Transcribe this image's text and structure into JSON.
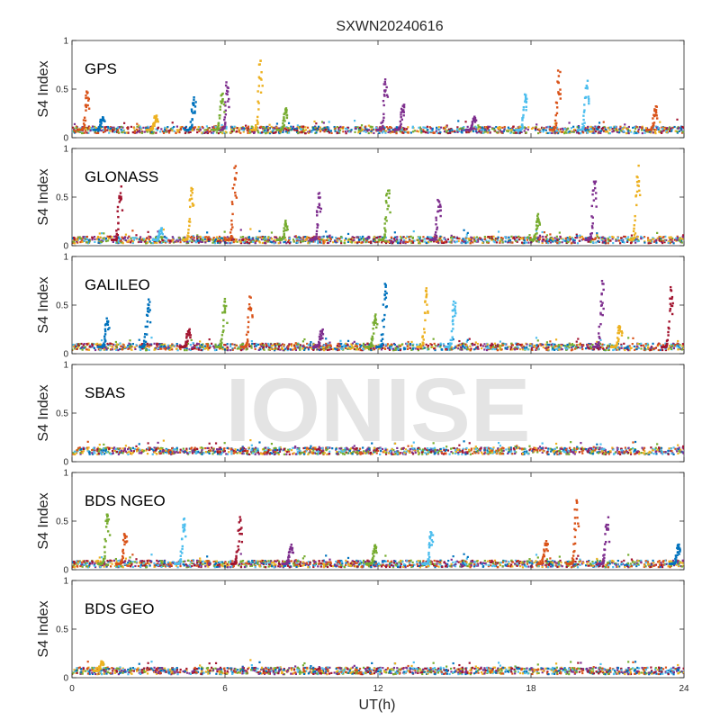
{
  "chart_data": {
    "type": "scatter",
    "title": "SXWN20240616",
    "xlabel": "UT(h)",
    "ylabel": "S4 Index",
    "xlim": [
      0,
      24
    ],
    "ylim": [
      0,
      1
    ],
    "xticks": [
      "0",
      "6",
      "12",
      "18",
      "24"
    ],
    "yticks": [
      "0",
      "0.5",
      "1"
    ],
    "grid": false,
    "watermark": "IONISE",
    "colors": [
      "#0072BD",
      "#D95319",
      "#EDB120",
      "#7E2F8E",
      "#77AC30",
      "#4DBEEE",
      "#A2142F"
    ],
    "panels": [
      {
        "label": "GPS",
        "baseline": 0.08,
        "spikes": [
          {
            "t": 0.6,
            "peak": 0.47,
            "color": "#D95319"
          },
          {
            "t": 1.2,
            "peak": 0.22,
            "color": "#0072BD"
          },
          {
            "t": 3.3,
            "peak": 0.23,
            "color": "#EDB120"
          },
          {
            "t": 4.8,
            "peak": 0.42,
            "color": "#0072BD"
          },
          {
            "t": 6.1,
            "peak": 0.57,
            "color": "#7E2F8E"
          },
          {
            "t": 5.9,
            "peak": 0.44,
            "color": "#77AC30"
          },
          {
            "t": 7.4,
            "peak": 0.77,
            "color": "#EDB120"
          },
          {
            "t": 8.4,
            "peak": 0.32,
            "color": "#77AC30"
          },
          {
            "t": 12.3,
            "peak": 0.6,
            "color": "#7E2F8E"
          },
          {
            "t": 13.0,
            "peak": 0.35,
            "color": "#7E2F8E"
          },
          {
            "t": 15.8,
            "peak": 0.22,
            "color": "#7E2F8E"
          },
          {
            "t": 17.8,
            "peak": 0.47,
            "color": "#4DBEEE"
          },
          {
            "t": 19.1,
            "peak": 0.68,
            "color": "#D95319"
          },
          {
            "t": 20.2,
            "peak": 0.58,
            "color": "#4DBEEE"
          },
          {
            "t": 22.9,
            "peak": 0.32,
            "color": "#D95319"
          }
        ]
      },
      {
        "label": "GLONASS",
        "baseline": 0.06,
        "spikes": [
          {
            "t": 1.9,
            "peak": 0.62,
            "color": "#A2142F"
          },
          {
            "t": 3.5,
            "peak": 0.18,
            "color": "#4DBEEE"
          },
          {
            "t": 4.7,
            "peak": 0.63,
            "color": "#EDB120"
          },
          {
            "t": 6.4,
            "peak": 0.84,
            "color": "#D95319"
          },
          {
            "t": 8.4,
            "peak": 0.25,
            "color": "#77AC30"
          },
          {
            "t": 9.7,
            "peak": 0.55,
            "color": "#7E2F8E"
          },
          {
            "t": 12.4,
            "peak": 0.57,
            "color": "#77AC30"
          },
          {
            "t": 14.4,
            "peak": 0.51,
            "color": "#7E2F8E"
          },
          {
            "t": 18.3,
            "peak": 0.33,
            "color": "#77AC30"
          },
          {
            "t": 20.5,
            "peak": 0.7,
            "color": "#7E2F8E"
          },
          {
            "t": 22.2,
            "peak": 0.8,
            "color": "#EDB120"
          }
        ]
      },
      {
        "label": "GALILEO",
        "baseline": 0.07,
        "spikes": [
          {
            "t": 1.4,
            "peak": 0.37,
            "color": "#0072BD"
          },
          {
            "t": 3.0,
            "peak": 0.6,
            "color": "#0072BD"
          },
          {
            "t": 4.6,
            "peak": 0.26,
            "color": "#A2142F"
          },
          {
            "t": 6.0,
            "peak": 0.58,
            "color": "#77AC30"
          },
          {
            "t": 7.0,
            "peak": 0.57,
            "color": "#D95319"
          },
          {
            "t": 9.8,
            "peak": 0.26,
            "color": "#7E2F8E"
          },
          {
            "t": 11.9,
            "peak": 0.42,
            "color": "#77AC30"
          },
          {
            "t": 12.3,
            "peak": 0.73,
            "color": "#0072BD"
          },
          {
            "t": 13.9,
            "peak": 0.66,
            "color": "#EDB120"
          },
          {
            "t": 15.0,
            "peak": 0.57,
            "color": "#4DBEEE"
          },
          {
            "t": 20.8,
            "peak": 0.72,
            "color": "#7E2F8E"
          },
          {
            "t": 21.5,
            "peak": 0.3,
            "color": "#EDB120"
          },
          {
            "t": 23.5,
            "peak": 0.7,
            "color": "#A2142F"
          }
        ]
      },
      {
        "label": "SBAS",
        "baseline": 0.11,
        "spikes": []
      },
      {
        "label": "BDS NGEO",
        "baseline": 0.06,
        "spikes": [
          {
            "t": 1.4,
            "peak": 0.62,
            "color": "#77AC30"
          },
          {
            "t": 2.1,
            "peak": 0.4,
            "color": "#D95319"
          },
          {
            "t": 4.4,
            "peak": 0.52,
            "color": "#4DBEEE"
          },
          {
            "t": 6.6,
            "peak": 0.53,
            "color": "#A2142F"
          },
          {
            "t": 8.6,
            "peak": 0.26,
            "color": "#7E2F8E"
          },
          {
            "t": 11.9,
            "peak": 0.27,
            "color": "#77AC30"
          },
          {
            "t": 14.1,
            "peak": 0.4,
            "color": "#4DBEEE"
          },
          {
            "t": 18.6,
            "peak": 0.3,
            "color": "#D95319"
          },
          {
            "t": 19.8,
            "peak": 0.72,
            "color": "#D95319"
          },
          {
            "t": 21.0,
            "peak": 0.53,
            "color": "#7E2F8E"
          },
          {
            "t": 23.8,
            "peak": 0.27,
            "color": "#0072BD"
          }
        ]
      },
      {
        "label": "BDS GEO",
        "baseline": 0.07,
        "spikes": [
          {
            "t": 1.2,
            "peak": 0.18,
            "color": "#EDB120"
          }
        ]
      }
    ]
  }
}
